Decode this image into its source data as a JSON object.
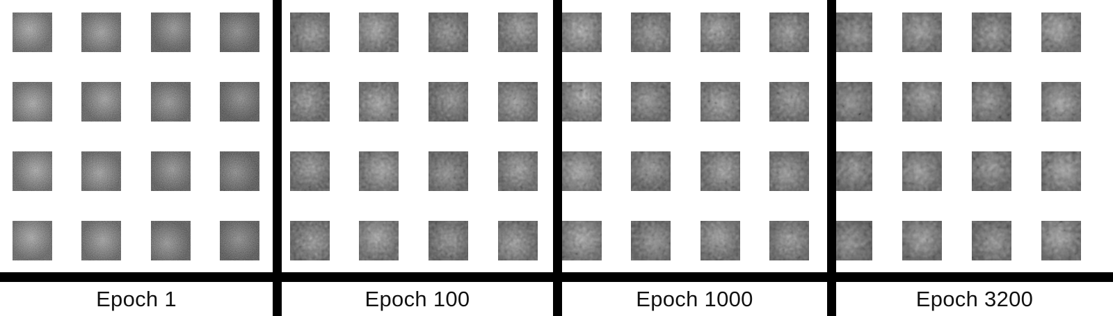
{
  "panels": [
    {
      "label": "Epoch 1"
    },
    {
      "label": "Epoch 100"
    },
    {
      "label": "Epoch 1000"
    },
    {
      "label": "Epoch 3200"
    }
  ],
  "grid": {
    "rows": 4,
    "cols": 4
  },
  "colors": {
    "divider": "#000000",
    "background": "#ffffff",
    "caption": "#111111"
  }
}
